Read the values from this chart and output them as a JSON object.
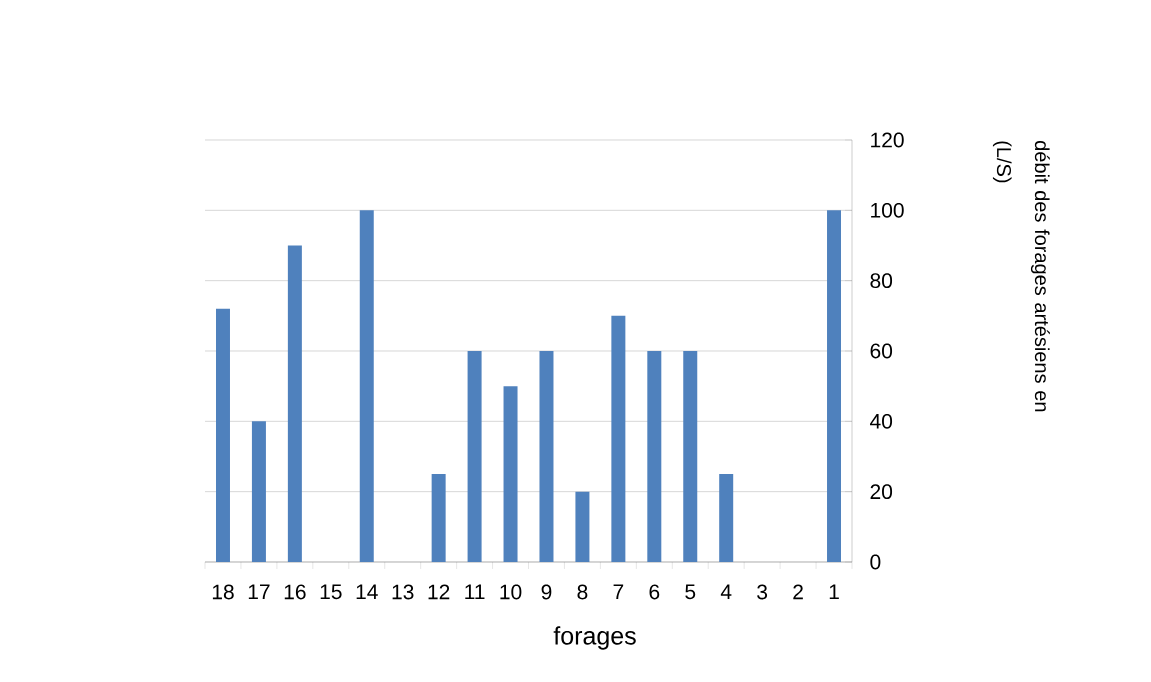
{
  "chart_data": {
    "type": "bar",
    "xlabel": "forages",
    "ylabel": "débit des forages artésiens en (L/S)",
    "categories": [
      "18",
      "17",
      "16",
      "15",
      "14",
      "13",
      "12",
      "11",
      "10",
      "9",
      "8",
      "7",
      "6",
      "5",
      "4",
      "3",
      "2",
      "1"
    ],
    "values": [
      72,
      40,
      90,
      null,
      100,
      null,
      25,
      60,
      50,
      60,
      20,
      70,
      60,
      60,
      25,
      null,
      null,
      100
    ],
    "color": "#4f81bd",
    "ylim": [
      0,
      120
    ],
    "yticks": [
      0,
      20,
      40,
      60,
      80,
      100,
      120
    ],
    "grid": "y"
  }
}
